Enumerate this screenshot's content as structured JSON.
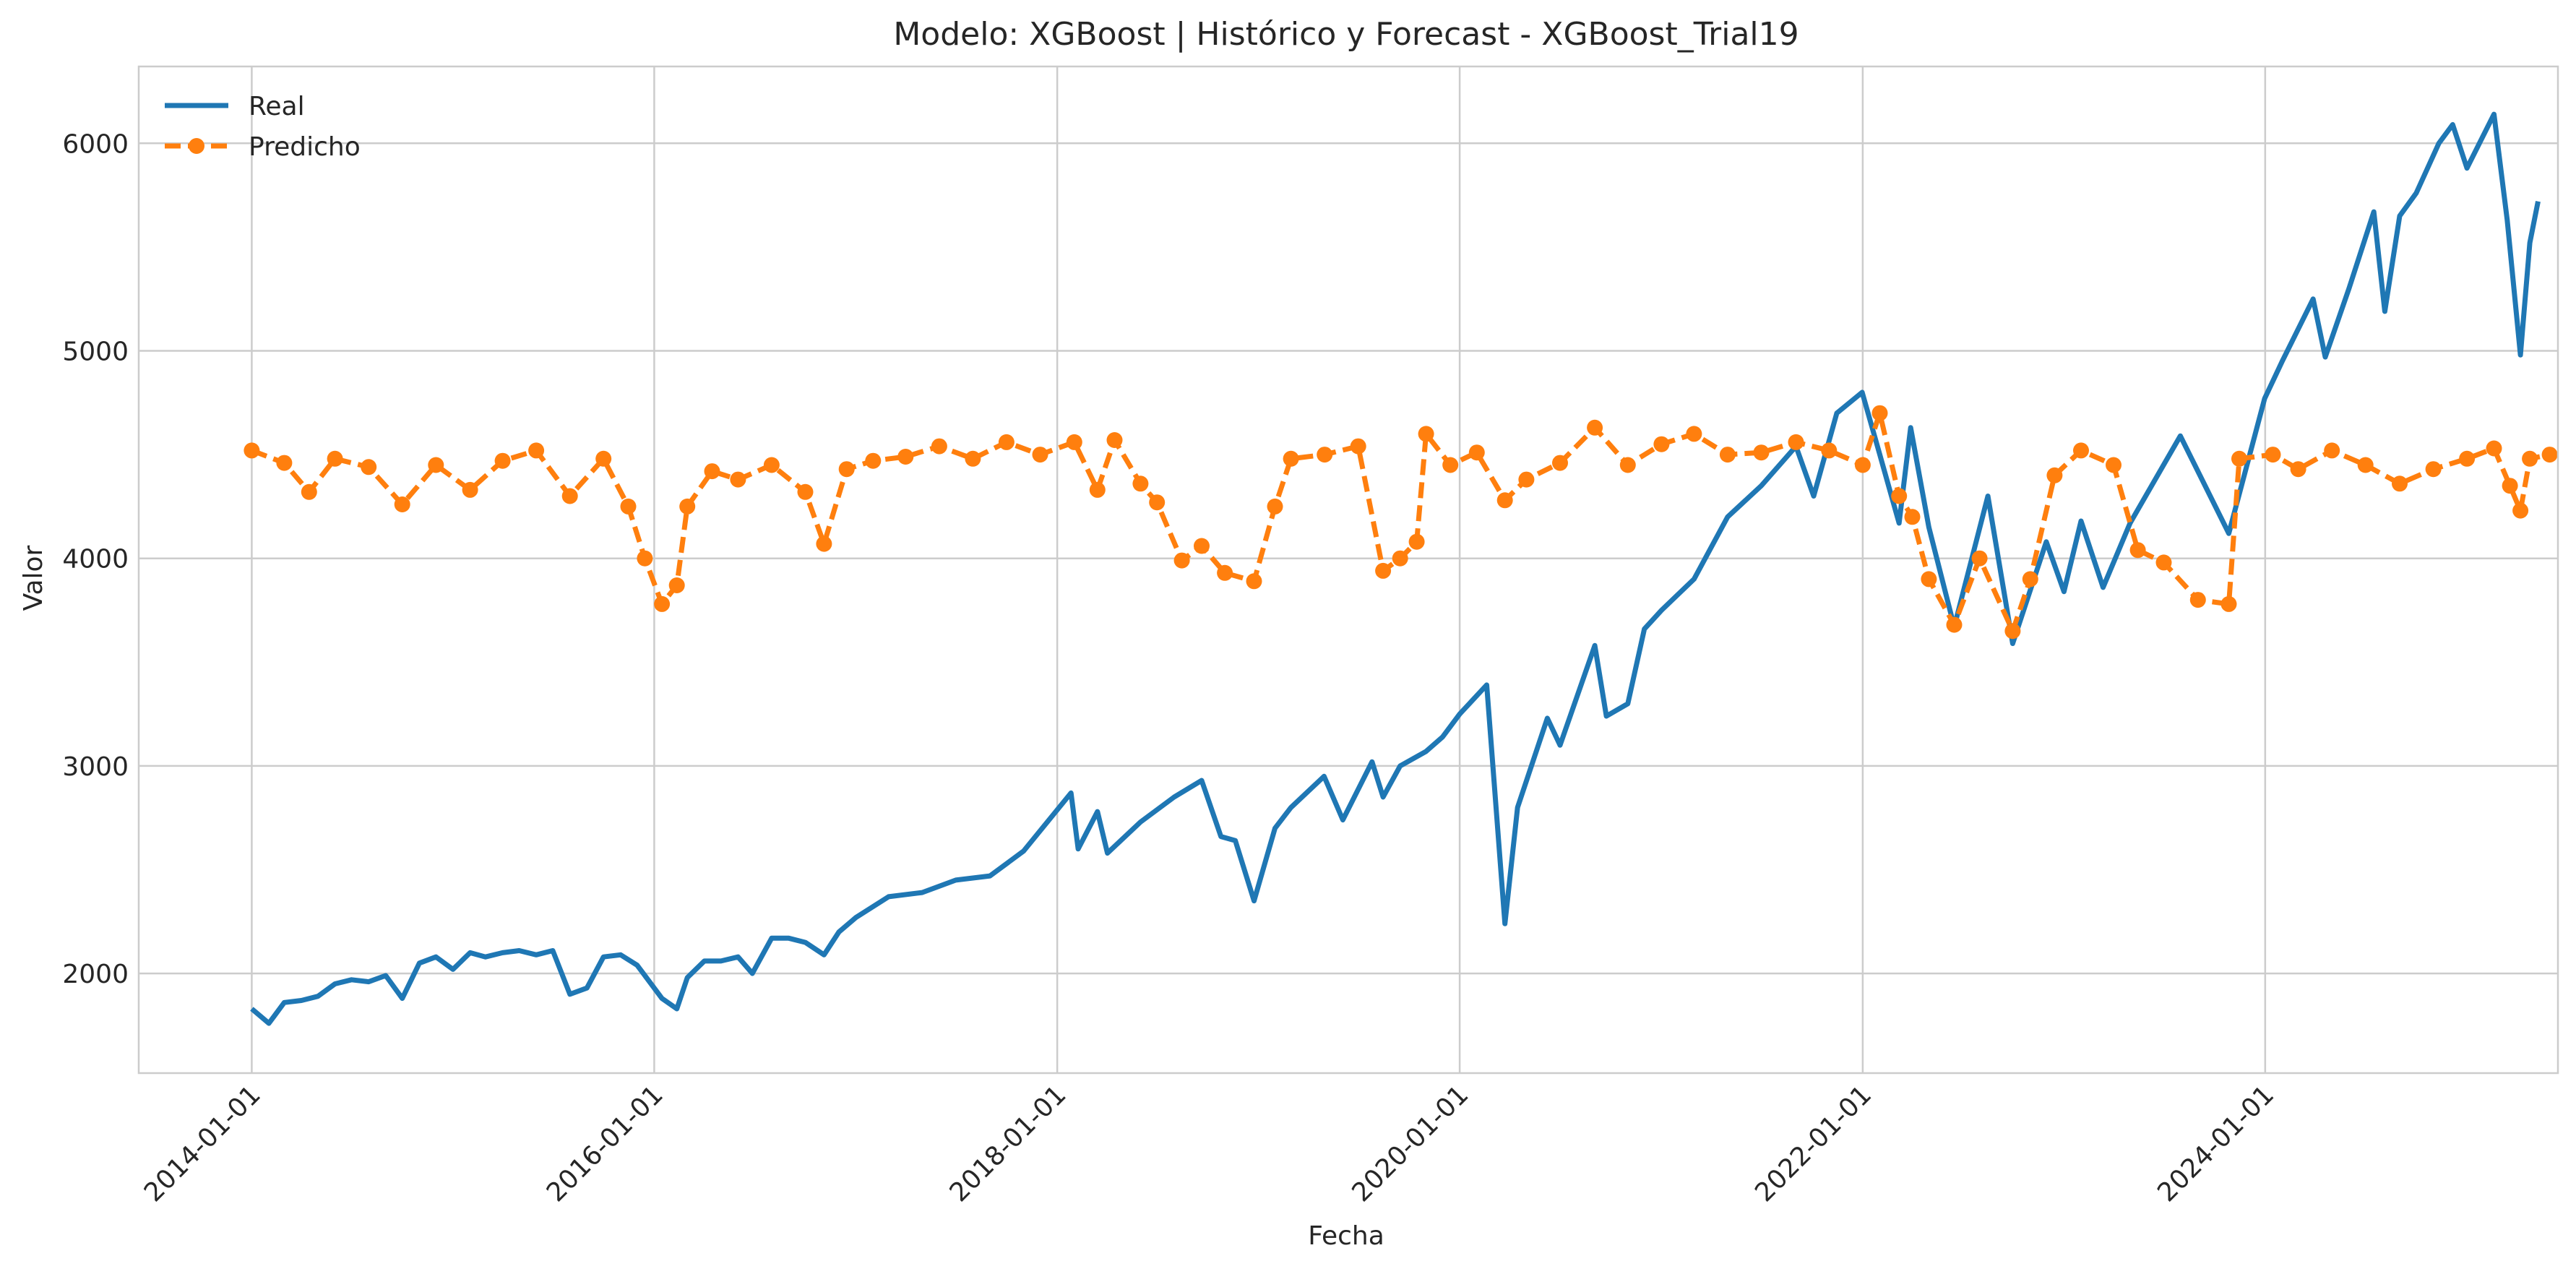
{
  "chart_data": {
    "type": "line",
    "title": "Modelo: XGBoost | Histórico y Forecast - XGBoost_Trial19",
    "xlabel": "Fecha",
    "ylabel": "Valor",
    "x_ticks": [
      "2014-01-01",
      "2016-01-01",
      "2018-01-01",
      "2020-01-01",
      "2022-01-01",
      "2024-01-01"
    ],
    "y_ticks": [
      2000,
      3000,
      4000,
      5000,
      6000
    ],
    "xlim": [
      "2013-06-10",
      "2025-06-15"
    ],
    "ylim": [
      1520,
      6370
    ],
    "grid": true,
    "legend_position": "top-left",
    "series": [
      {
        "name": "Real",
        "color": "#1f77b4",
        "style": "solid",
        "points": [
          [
            "2014-01-01",
            1830
          ],
          [
            "2014-02-01",
            1760
          ],
          [
            "2014-03-01",
            1860
          ],
          [
            "2014-04-01",
            1870
          ],
          [
            "2014-05-01",
            1890
          ],
          [
            "2014-06-01",
            1950
          ],
          [
            "2014-07-01",
            1970
          ],
          [
            "2014-08-01",
            1960
          ],
          [
            "2014-09-01",
            1990
          ],
          [
            "2014-10-01",
            1880
          ],
          [
            "2014-11-01",
            2050
          ],
          [
            "2014-12-01",
            2080
          ],
          [
            "2015-01-01",
            2020
          ],
          [
            "2015-02-01",
            2100
          ],
          [
            "2015-03-01",
            2080
          ],
          [
            "2015-04-01",
            2100
          ],
          [
            "2015-05-01",
            2110
          ],
          [
            "2015-06-01",
            2090
          ],
          [
            "2015-07-01",
            2110
          ],
          [
            "2015-08-01",
            1900
          ],
          [
            "2015-09-01",
            1930
          ],
          [
            "2015-10-01",
            2080
          ],
          [
            "2015-11-01",
            2090
          ],
          [
            "2015-12-01",
            2040
          ],
          [
            "2016-01-15",
            1880
          ],
          [
            "2016-02-11",
            1830
          ],
          [
            "2016-03-01",
            1980
          ],
          [
            "2016-04-01",
            2060
          ],
          [
            "2016-05-01",
            2060
          ],
          [
            "2016-06-01",
            2080
          ],
          [
            "2016-06-27",
            2000
          ],
          [
            "2016-08-01",
            2170
          ],
          [
            "2016-09-01",
            2170
          ],
          [
            "2016-10-01",
            2150
          ],
          [
            "2016-11-04",
            2090
          ],
          [
            "2016-12-01",
            2200
          ],
          [
            "2017-01-01",
            2270
          ],
          [
            "2017-03-01",
            2370
          ],
          [
            "2017-05-01",
            2390
          ],
          [
            "2017-07-01",
            2450
          ],
          [
            "2017-09-01",
            2470
          ],
          [
            "2017-11-01",
            2590
          ],
          [
            "2018-01-26",
            2870
          ],
          [
            "2018-02-08",
            2600
          ],
          [
            "2018-03-15",
            2780
          ],
          [
            "2018-04-02",
            2580
          ],
          [
            "2018-06-01",
            2730
          ],
          [
            "2018-08-01",
            2850
          ],
          [
            "2018-09-20",
            2930
          ],
          [
            "2018-10-25",
            2660
          ],
          [
            "2018-11-20",
            2640
          ],
          [
            "2018-12-24",
            2350
          ],
          [
            "2019-01-31",
            2700
          ],
          [
            "2019-03-01",
            2800
          ],
          [
            "2019-04-30",
            2950
          ],
          [
            "2019-06-03",
            2740
          ],
          [
            "2019-07-26",
            3020
          ],
          [
            "2019-08-15",
            2850
          ],
          [
            "2019-09-15",
            3000
          ],
          [
            "2019-11-01",
            3070
          ],
          [
            "2019-12-01",
            3140
          ],
          [
            "2020-01-01",
            3250
          ],
          [
            "2020-02-19",
            3390
          ],
          [
            "2020-03-23",
            2240
          ],
          [
            "2020-04-15",
            2800
          ],
          [
            "2020-06-08",
            3230
          ],
          [
            "2020-07-01",
            3100
          ],
          [
            "2020-09-02",
            3580
          ],
          [
            "2020-09-23",
            3240
          ],
          [
            "2020-11-01",
            3300
          ],
          [
            "2020-12-01",
            3660
          ],
          [
            "2021-01-01",
            3750
          ],
          [
            "2021-03-01",
            3900
          ],
          [
            "2021-05-01",
            4200
          ],
          [
            "2021-07-01",
            4350
          ],
          [
            "2021-09-02",
            4540
          ],
          [
            "2021-10-04",
            4300
          ],
          [
            "2021-11-15",
            4700
          ],
          [
            "2021-12-31",
            4800
          ],
          [
            "2022-02-01",
            4500
          ],
          [
            "2022-03-08",
            4170
          ],
          [
            "2022-03-29",
            4630
          ],
          [
            "2022-05-01",
            4150
          ],
          [
            "2022-06-16",
            3670
          ],
          [
            "2022-08-16",
            4300
          ],
          [
            "2022-09-30",
            3590
          ],
          [
            "2022-11-30",
            4080
          ],
          [
            "2023-01-01",
            3840
          ],
          [
            "2023-02-01",
            4180
          ],
          [
            "2023-03-13",
            3860
          ],
          [
            "2023-05-01",
            4170
          ],
          [
            "2023-07-31",
            4590
          ],
          [
            "2023-10-27",
            4120
          ],
          [
            "2023-12-31",
            4770
          ],
          [
            "2024-02-01",
            4950
          ],
          [
            "2024-03-28",
            5250
          ],
          [
            "2024-04-19",
            4970
          ],
          [
            "2024-06-01",
            5300
          ],
          [
            "2024-07-16",
            5670
          ],
          [
            "2024-08-05",
            5190
          ],
          [
            "2024-09-01",
            5650
          ],
          [
            "2024-10-01",
            5760
          ],
          [
            "2024-11-11",
            6000
          ],
          [
            "2024-12-06",
            6090
          ],
          [
            "2025-01-01",
            5880
          ],
          [
            "2025-02-19",
            6140
          ],
          [
            "2025-03-15",
            5630
          ],
          [
            "2025-04-08",
            4980
          ],
          [
            "2025-04-25",
            5520
          ],
          [
            "2025-05-10",
            5720
          ]
        ]
      },
      {
        "name": "Predicho",
        "color": "#ff7f0e",
        "style": "dashed",
        "marker": "circle",
        "points": [
          [
            "2014-01-01",
            4520
          ],
          [
            "2014-03-01",
            4460
          ],
          [
            "2014-04-15",
            4320
          ],
          [
            "2014-06-01",
            4480
          ],
          [
            "2014-08-01",
            4440
          ],
          [
            "2014-10-01",
            4260
          ],
          [
            "2014-12-01",
            4450
          ],
          [
            "2015-02-01",
            4330
          ],
          [
            "2015-04-01",
            4470
          ],
          [
            "2015-06-01",
            4520
          ],
          [
            "2015-08-01",
            4300
          ],
          [
            "2015-10-01",
            4480
          ],
          [
            "2015-11-15",
            4250
          ],
          [
            "2015-12-15",
            4000
          ],
          [
            "2016-01-15",
            3780
          ],
          [
            "2016-02-11",
            3870
          ],
          [
            "2016-03-01",
            4250
          ],
          [
            "2016-04-15",
            4420
          ],
          [
            "2016-06-01",
            4380
          ],
          [
            "2016-08-01",
            4450
          ],
          [
            "2016-10-01",
            4320
          ],
          [
            "2016-11-04",
            4070
          ],
          [
            "2016-12-15",
            4430
          ],
          [
            "2017-02-01",
            4470
          ],
          [
            "2017-04-01",
            4490
          ],
          [
            "2017-06-01",
            4540
          ],
          [
            "2017-08-01",
            4480
          ],
          [
            "2017-10-01",
            4560
          ],
          [
            "2017-12-01",
            4500
          ],
          [
            "2018-02-01",
            4560
          ],
          [
            "2018-03-15",
            4330
          ],
          [
            "2018-04-15",
            4570
          ],
          [
            "2018-06-01",
            4360
          ],
          [
            "2018-07-01",
            4270
          ],
          [
            "2018-08-15",
            3990
          ],
          [
            "2018-09-20",
            4060
          ],
          [
            "2018-11-01",
            3930
          ],
          [
            "2018-12-24",
            3890
          ],
          [
            "2019-01-31",
            4250
          ],
          [
            "2019-03-01",
            4480
          ],
          [
            "2019-05-01",
            4500
          ],
          [
            "2019-07-01",
            4540
          ],
          [
            "2019-08-15",
            3940
          ],
          [
            "2019-09-15",
            4000
          ],
          [
            "2019-10-15",
            4080
          ],
          [
            "2019-11-01",
            4600
          ],
          [
            "2019-12-15",
            4450
          ],
          [
            "2020-02-01",
            4510
          ],
          [
            "2020-03-23",
            4280
          ],
          [
            "2020-05-01",
            4380
          ],
          [
            "2020-07-01",
            4460
          ],
          [
            "2020-09-02",
            4630
          ],
          [
            "2020-11-01",
            4450
          ],
          [
            "2021-01-01",
            4550
          ],
          [
            "2021-03-01",
            4600
          ],
          [
            "2021-05-01",
            4500
          ],
          [
            "2021-07-01",
            4510
          ],
          [
            "2021-09-02",
            4560
          ],
          [
            "2021-11-01",
            4520
          ],
          [
            "2022-01-01",
            4450
          ],
          [
            "2022-02-01",
            4700
          ],
          [
            "2022-03-08",
            4300
          ],
          [
            "2022-04-01",
            4200
          ],
          [
            "2022-05-01",
            3900
          ],
          [
            "2022-06-16",
            3680
          ],
          [
            "2022-08-01",
            4000
          ],
          [
            "2022-09-30",
            3650
          ],
          [
            "2022-11-01",
            3900
          ],
          [
            "2022-12-15",
            4400
          ],
          [
            "2023-02-01",
            4520
          ],
          [
            "2023-04-01",
            4450
          ],
          [
            "2023-05-15",
            4040
          ],
          [
            "2023-07-01",
            3980
          ],
          [
            "2023-09-01",
            3800
          ],
          [
            "2023-10-27",
            3780
          ],
          [
            "2023-11-15",
            4480
          ],
          [
            "2024-01-15",
            4500
          ],
          [
            "2024-03-01",
            4430
          ],
          [
            "2024-05-01",
            4520
          ],
          [
            "2024-07-01",
            4450
          ],
          [
            "2024-09-01",
            4360
          ],
          [
            "2024-11-01",
            4430
          ],
          [
            "2025-01-01",
            4480
          ],
          [
            "2025-02-19",
            4530
          ],
          [
            "2025-03-20",
            4350
          ],
          [
            "2025-04-08",
            4230
          ],
          [
            "2025-04-25",
            4480
          ],
          [
            "2025-05-31",
            4500
          ]
        ]
      }
    ]
  }
}
